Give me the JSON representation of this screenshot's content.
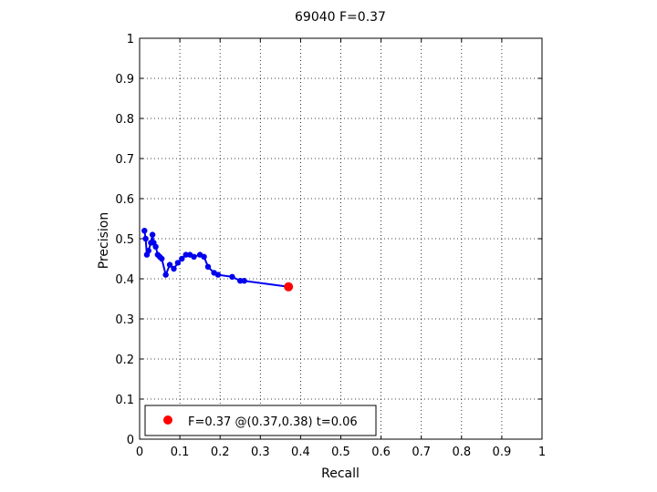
{
  "chart_data": {
    "type": "line",
    "title": "69040 F=0.37",
    "xlabel": "Recall",
    "ylabel": "Precision",
    "xlim": [
      0,
      1
    ],
    "ylim": [
      0,
      1
    ],
    "grid": true,
    "xticks": [
      "0",
      "0.1",
      "0.2",
      "0.3",
      "0.4",
      "0.5",
      "0.6",
      "0.7",
      "0.8",
      "0.9",
      "1"
    ],
    "yticks": [
      "0",
      "0.1",
      "0.2",
      "0.3",
      "0.4",
      "0.5",
      "0.6",
      "0.7",
      "0.8",
      "0.9",
      "1"
    ],
    "series": [
      {
        "color": "#0000ee",
        "points": [
          [
            0.012,
            0.52
          ],
          [
            0.015,
            0.5
          ],
          [
            0.018,
            0.46
          ],
          [
            0.022,
            0.47
          ],
          [
            0.028,
            0.49
          ],
          [
            0.032,
            0.51
          ],
          [
            0.035,
            0.49
          ],
          [
            0.04,
            0.48
          ],
          [
            0.045,
            0.46
          ],
          [
            0.05,
            0.455
          ],
          [
            0.055,
            0.45
          ],
          [
            0.065,
            0.41
          ],
          [
            0.075,
            0.435
          ],
          [
            0.085,
            0.425
          ],
          [
            0.095,
            0.44
          ],
          [
            0.105,
            0.45
          ],
          [
            0.115,
            0.46
          ],
          [
            0.125,
            0.46
          ],
          [
            0.135,
            0.455
          ],
          [
            0.15,
            0.46
          ],
          [
            0.16,
            0.455
          ],
          [
            0.17,
            0.43
          ],
          [
            0.185,
            0.415
          ],
          [
            0.195,
            0.41
          ],
          [
            0.23,
            0.405
          ],
          [
            0.25,
            0.395
          ],
          [
            0.26,
            0.395
          ],
          [
            0.37,
            0.38
          ]
        ]
      }
    ],
    "marker": {
      "x": 0.37,
      "y": 0.38,
      "color": "#ff0000"
    },
    "legend": {
      "position": "bottom-left",
      "text": "F=0.37 @(0.37,0.38) t=0.06"
    }
  }
}
